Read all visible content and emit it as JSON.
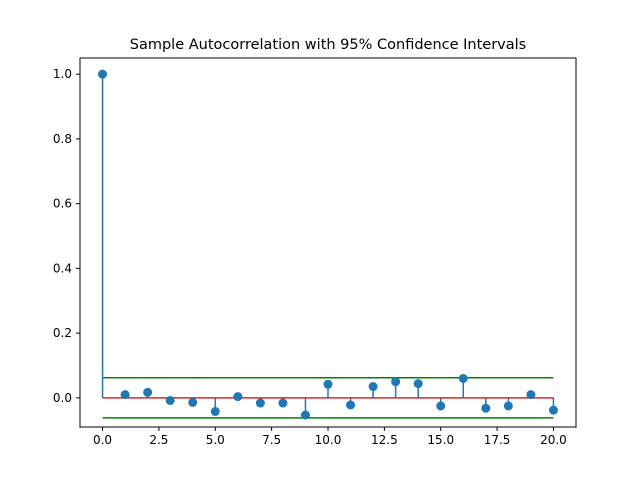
{
  "chart_data": {
    "type": "stem",
    "title": "Sample Autocorrelation with 95% Confidence Intervals",
    "xlabel": "",
    "ylabel": "",
    "xlim": [
      -1,
      21
    ],
    "ylim": [
      -0.09,
      1.05
    ],
    "x_ticks": [
      0,
      2.5,
      5,
      7.5,
      10,
      12.5,
      15,
      17.5,
      20
    ],
    "x_tick_labels": [
      "0.0",
      "2.5",
      "5.0",
      "7.5",
      "10.0",
      "12.5",
      "15.0",
      "17.5",
      "20.0"
    ],
    "y_ticks": [
      0,
      0.2,
      0.4,
      0.6,
      0.8,
      1.0
    ],
    "y_tick_labels": [
      "0.0",
      "0.2",
      "0.4",
      "0.6",
      "0.8",
      "1.0"
    ],
    "lags": [
      0,
      1,
      2,
      3,
      4,
      5,
      6,
      7,
      8,
      9,
      10,
      11,
      12,
      13,
      14,
      15,
      16,
      17,
      18,
      19,
      20
    ],
    "acf": [
      1.0,
      0.01,
      0.017,
      -0.008,
      -0.014,
      -0.042,
      0.004,
      -0.016,
      -0.016,
      -0.053,
      0.042,
      -0.022,
      0.035,
      0.05,
      0.044,
      -0.025,
      0.06,
      -0.032,
      -0.025,
      0.01,
      -0.038
    ],
    "confidence_upper": 0.062,
    "confidence_lower": -0.062,
    "baseline": 0,
    "colors": {
      "stem": "#1f77b4",
      "marker": "#1f77b4",
      "baseline": "#d62728",
      "confidence": "#008000"
    },
    "grid": false,
    "legend": "none"
  }
}
